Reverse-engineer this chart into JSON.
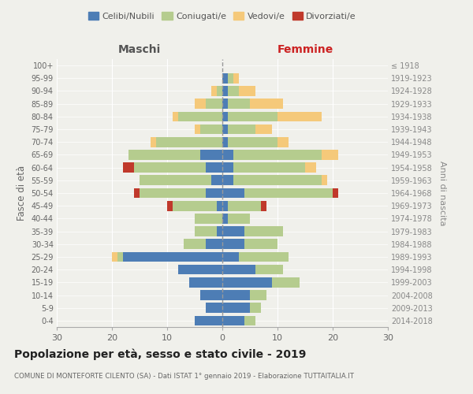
{
  "age_groups": [
    "0-4",
    "5-9",
    "10-14",
    "15-19",
    "20-24",
    "25-29",
    "30-34",
    "35-39",
    "40-44",
    "45-49",
    "50-54",
    "55-59",
    "60-64",
    "65-69",
    "70-74",
    "75-79",
    "80-84",
    "85-89",
    "90-94",
    "95-99",
    "100+"
  ],
  "birth_years": [
    "2014-2018",
    "2009-2013",
    "2004-2008",
    "1999-2003",
    "1994-1998",
    "1989-1993",
    "1984-1988",
    "1979-1983",
    "1974-1978",
    "1969-1973",
    "1964-1968",
    "1959-1963",
    "1954-1958",
    "1949-1953",
    "1944-1948",
    "1939-1943",
    "1934-1938",
    "1929-1933",
    "1924-1928",
    "1919-1923",
    "≤ 1918"
  ],
  "male": {
    "celibe": [
      5,
      3,
      4,
      6,
      8,
      18,
      3,
      1,
      0,
      1,
      3,
      2,
      3,
      4,
      0,
      0,
      0,
      0,
      0,
      0,
      0
    ],
    "coniugato": [
      0,
      0,
      0,
      0,
      0,
      1,
      4,
      4,
      5,
      8,
      12,
      13,
      13,
      13,
      12,
      4,
      8,
      3,
      1,
      0,
      0
    ],
    "vedovo": [
      0,
      0,
      0,
      0,
      0,
      1,
      0,
      0,
      0,
      0,
      0,
      0,
      0,
      0,
      1,
      1,
      1,
      2,
      1,
      0,
      0
    ],
    "divorziato": [
      0,
      0,
      0,
      0,
      0,
      0,
      0,
      0,
      0,
      1,
      1,
      0,
      2,
      0,
      0,
      0,
      0,
      0,
      0,
      0,
      0
    ]
  },
  "female": {
    "nubile": [
      4,
      5,
      5,
      9,
      6,
      3,
      4,
      4,
      1,
      1,
      4,
      2,
      2,
      2,
      1,
      1,
      1,
      1,
      1,
      1,
      0
    ],
    "coniugata": [
      2,
      2,
      3,
      5,
      5,
      9,
      6,
      7,
      4,
      6,
      16,
      16,
      13,
      16,
      9,
      5,
      9,
      4,
      2,
      1,
      0
    ],
    "vedova": [
      0,
      0,
      0,
      0,
      0,
      0,
      0,
      0,
      0,
      0,
      0,
      1,
      2,
      3,
      2,
      3,
      8,
      6,
      3,
      1,
      0
    ],
    "divorziata": [
      0,
      0,
      0,
      0,
      0,
      0,
      0,
      0,
      0,
      1,
      1,
      0,
      0,
      0,
      0,
      0,
      0,
      0,
      0,
      0,
      0
    ]
  },
  "colors": {
    "celibe_nubile": "#4d7db5",
    "coniugato": "#b5cc8e",
    "vedovo": "#f5c97a",
    "divorziato": "#c0392b"
  },
  "title": "Popolazione per età, sesso e stato civile - 2019",
  "subtitle": "COMUNE DI MONTEFORTE CILENTO (SA) - Dati ISTAT 1° gennaio 2019 - Elaborazione TUTTAITALIA.IT",
  "xlabel_left": "Maschi",
  "xlabel_right": "Femmine",
  "ylabel_left": "Fasce di età",
  "ylabel_right": "Anni di nascita",
  "xlim": 30,
  "legend_labels": [
    "Celibi/Nubili",
    "Coniugati/e",
    "Vedovi/e",
    "Divorziati/e"
  ],
  "background_color": "#f0f0eb"
}
